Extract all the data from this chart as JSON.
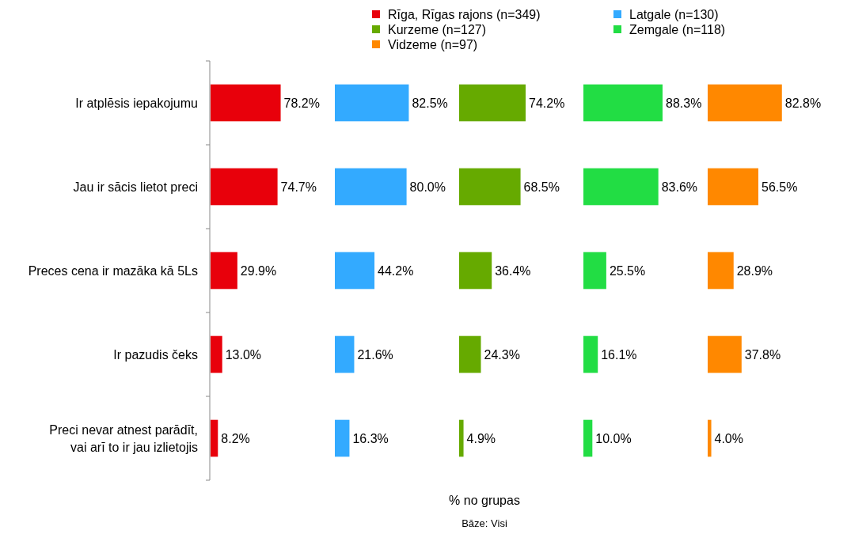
{
  "chart_data": [
    {
      "type": "bar",
      "orientation": "horizontal",
      "categories": [
        "Ir atplēsis iepakojumu",
        "Jau ir sācis lietot preci",
        "Preces cena ir mazāka kā 5Ls",
        "Ir pazudis čeks",
        "Preci nevar atnest parādīt, vai arī to ir jau izlietojis"
      ],
      "legend": "top",
      "tick_labels": "y",
      "series": [
        {
          "name": "Rīga, Rīgas rajons (n=349)",
          "color": "#e8000b",
          "values": [
            78.2,
            74.7,
            29.9,
            13.0,
            8.2
          ],
          "value_labels": [
            "78.2%",
            "74.7%",
            "29.9%",
            "13.0%",
            "8.2%"
          ]
        }
      ]
    },
    {
      "type": "bar",
      "orientation": "horizontal",
      "categories": [
        null,
        null,
        null,
        null,
        null
      ],
      "legend": "top",
      "tick_labels": false,
      "series": [
        {
          "name": "Latgale (n=130)",
          "color": "#33aaff",
          "values": [
            82.5,
            80.0,
            44.2,
            21.6,
            16.3
          ],
          "value_labels": [
            "82.5%",
            "80.0%",
            "44.2%",
            "21.6%",
            "16.3%"
          ]
        }
      ]
    },
    {
      "type": "bar",
      "orientation": "horizontal",
      "categories": [
        null,
        null,
        null,
        null,
        null
      ],
      "legend": "top",
      "tick_labels": false,
      "xlabel": "% no grupas",
      "annotations": [
        "Bāze: Visi"
      ],
      "series": [
        {
          "name": "Kurzeme (n=127)",
          "color": "#66aa00",
          "values": [
            74.2,
            68.5,
            36.4,
            24.3,
            4.9
          ],
          "value_labels": [
            "74.2%",
            "68.5%",
            "36.4%",
            "24.3%",
            "4.9%"
          ]
        }
      ]
    },
    {
      "type": "bar",
      "orientation": "horizontal",
      "categories": [
        null,
        null,
        null,
        null,
        null
      ],
      "legend": "top",
      "tick_labels": false,
      "series": [
        {
          "name": "Zemgale (n=118)",
          "color": "#22dd44",
          "values": [
            88.3,
            83.6,
            25.5,
            16.1,
            10.0
          ],
          "value_labels": [
            "88.3%",
            "83.6%",
            "25.5%",
            "16.1%",
            "10.0%"
          ]
        }
      ]
    },
    {
      "type": "bar",
      "orientation": "horizontal",
      "categories": [
        null,
        null,
        null,
        null,
        null
      ],
      "legend": "top",
      "tick_labels": false,
      "series": [
        {
          "name": "Vidzeme (n=97)",
          "color": "#ff8800",
          "values": [
            82.8,
            56.5,
            28.9,
            37.8,
            4.0
          ],
          "value_labels": [
            "82.8%",
            "56.5%",
            "28.9%",
            "37.8%",
            "4.0%"
          ]
        }
      ]
    }
  ]
}
